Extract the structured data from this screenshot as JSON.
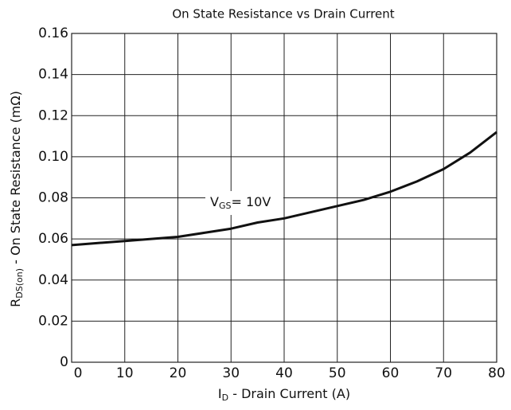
{
  "chart_data": {
    "type": "line",
    "title": "On State Resistance vs Drain Current",
    "x_label": {
      "main": "I",
      "sub": "D",
      "rest": " - Drain Current (A)"
    },
    "y_label": {
      "main": "R",
      "sub": "DS(on)",
      "rest": " - On State Resistance (mΩ)"
    },
    "annotation": {
      "main": "V",
      "sub": "GS",
      "rest": "= 10V"
    },
    "x": [
      0,
      5,
      10,
      15,
      20,
      25,
      30,
      35,
      40,
      45,
      50,
      55,
      60,
      65,
      70,
      75,
      80
    ],
    "values": [
      0.057,
      0.058,
      0.059,
      0.06,
      0.061,
      0.063,
      0.065,
      0.068,
      0.07,
      0.073,
      0.076,
      0.079,
      0.083,
      0.088,
      0.094,
      0.102,
      0.112
    ],
    "color": "#111111",
    "xlim": [
      0,
      80
    ],
    "xticks": [
      0,
      10,
      20,
      30,
      40,
      50,
      60,
      70,
      80
    ],
    "ylim": [
      0,
      0.16
    ],
    "yticks": [
      0,
      0.02,
      0.04,
      0.06,
      0.08,
      {
        "value": 0.1,
        "label": "0.10"
      },
      0.12,
      0.14,
      0.16
    ],
    "grid": true
  }
}
